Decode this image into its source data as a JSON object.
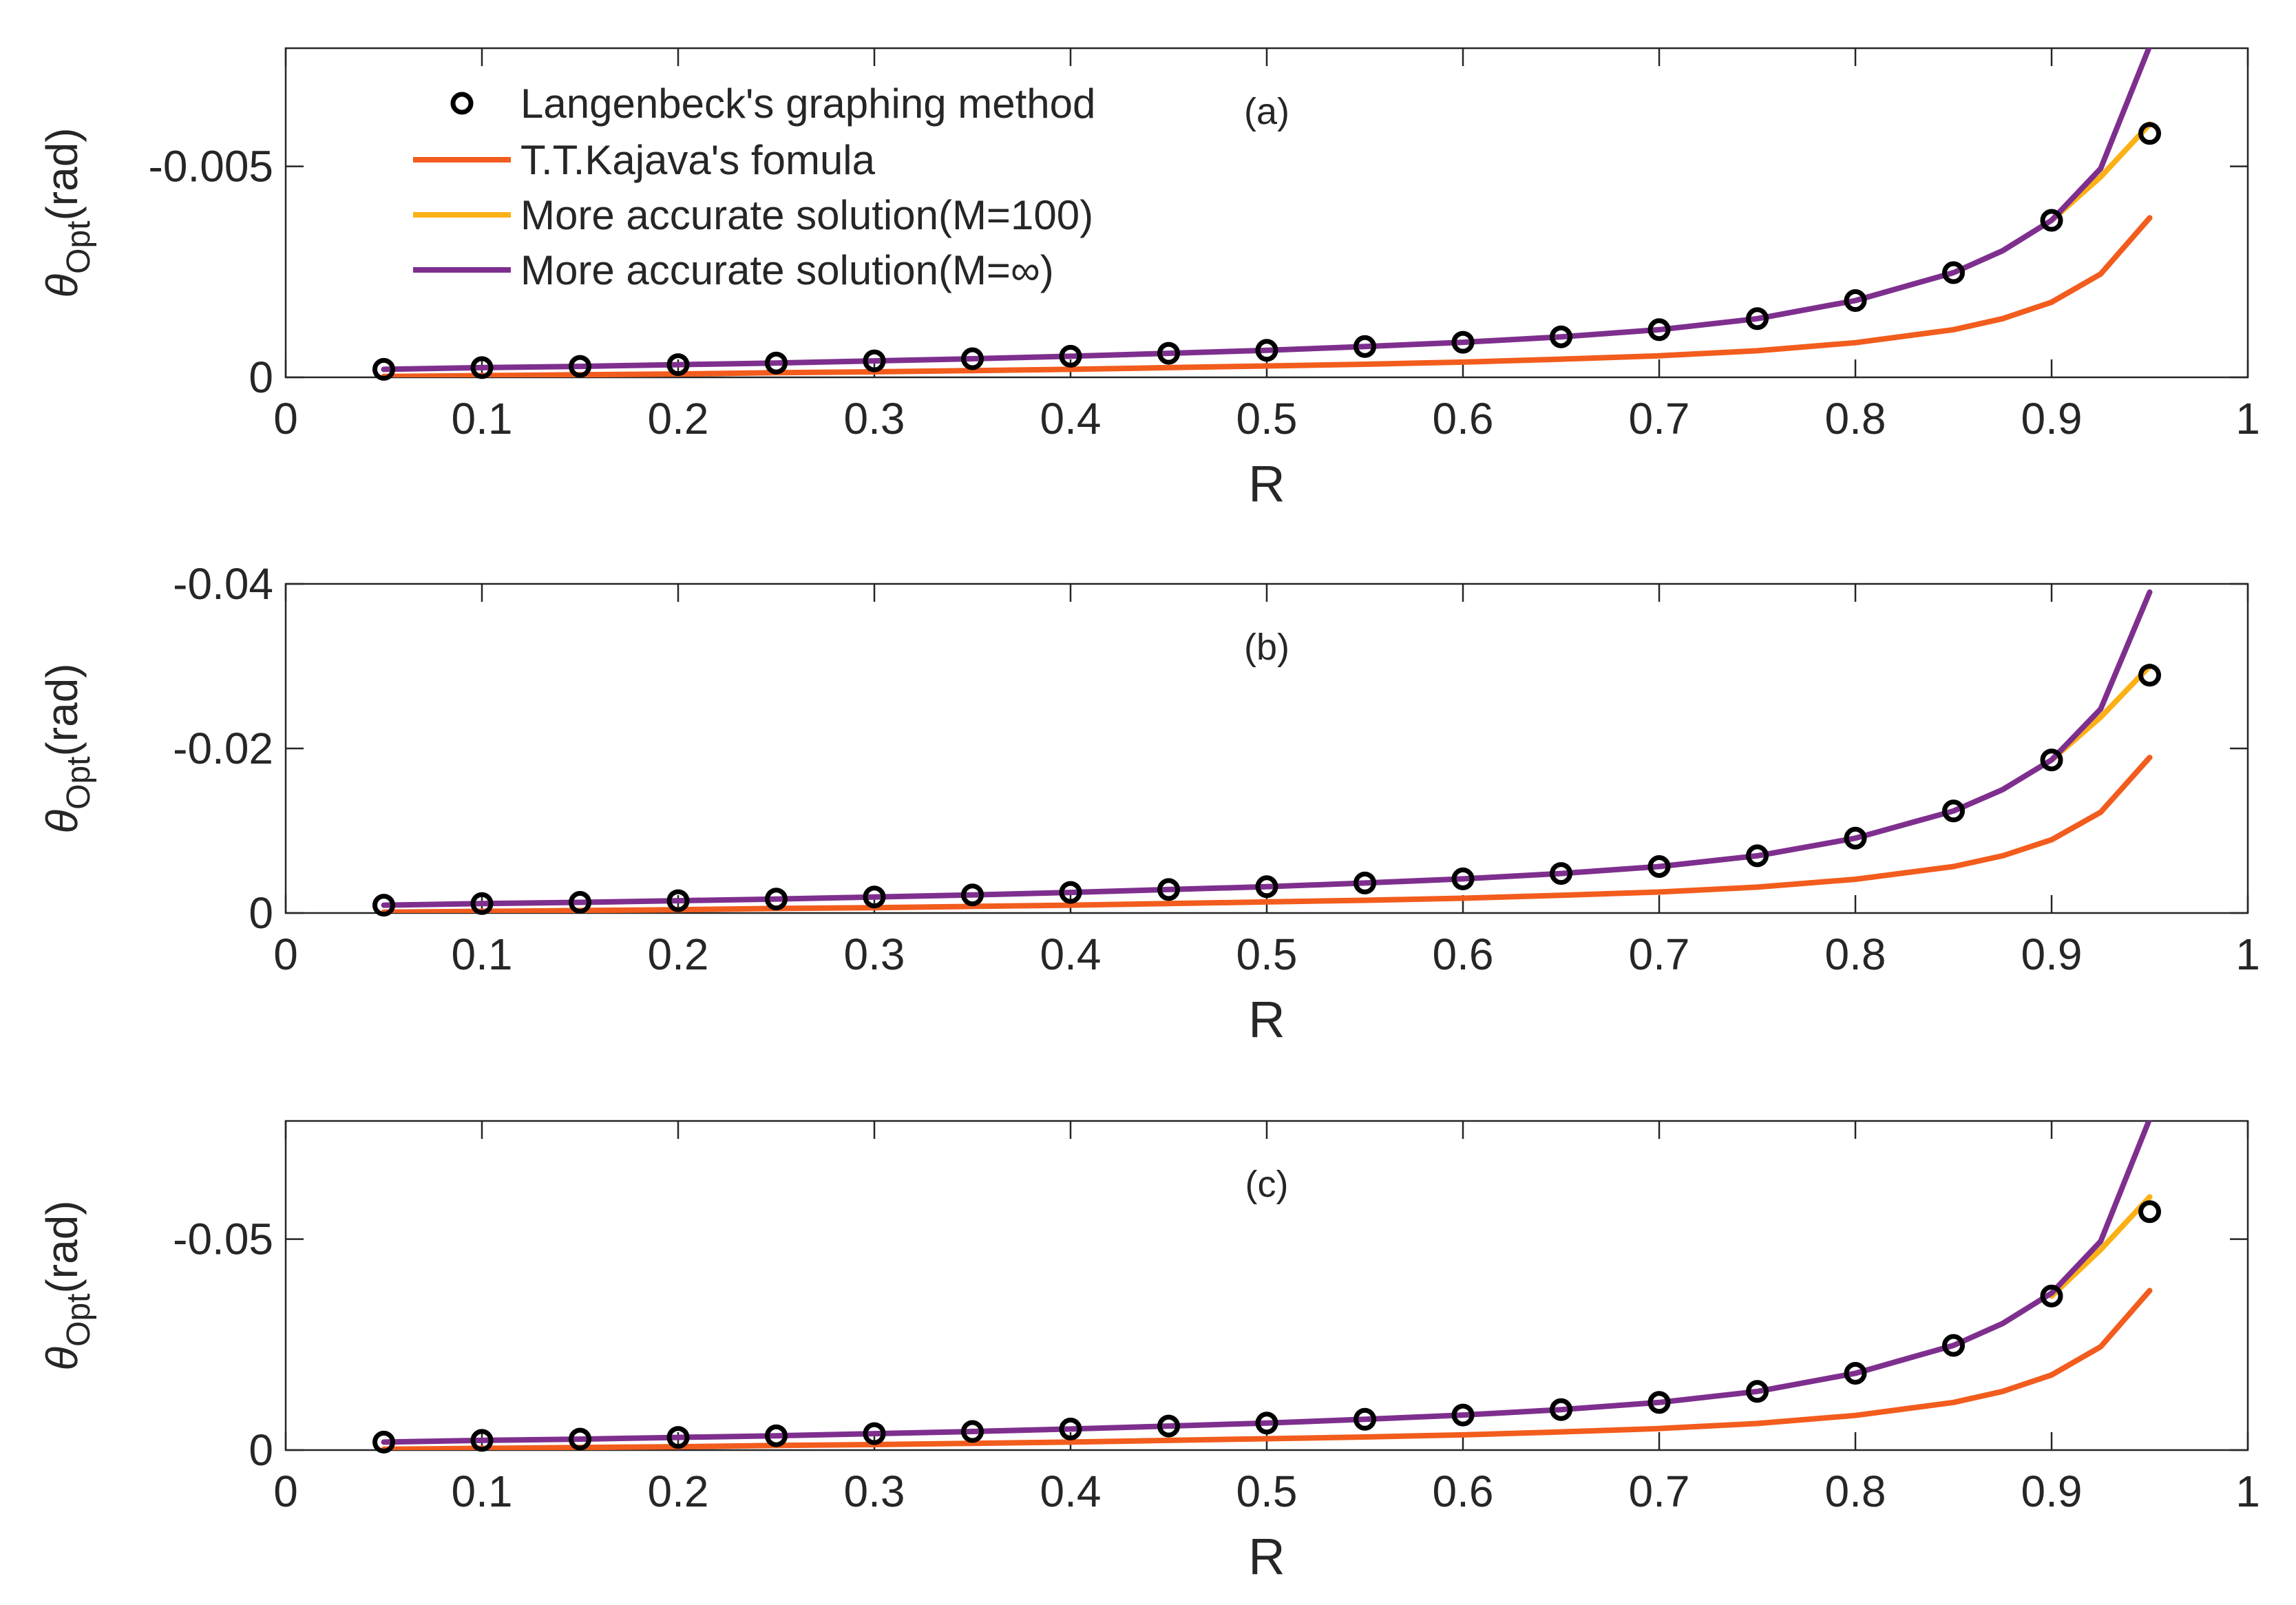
{
  "colors": {
    "langenbeck": "#000000",
    "kajava": "#F25C1D",
    "m100": "#FBB116",
    "minf": "#7E2F8E",
    "axes": "#262626"
  },
  "legend": {
    "placement": "top-left",
    "items": [
      "Langenbeck's graphing method",
      "T.T.Kajava's fomula",
      "More accurate solution(M=100)",
      "More accurate solution(M=∞)"
    ]
  },
  "chart_data": [
    {
      "type": "line",
      "annotation": "(a)",
      "xlabel": "R",
      "ylabel_main": "θ",
      "ylabel_sub": "Opt",
      "ylabel_unit": "(rad)",
      "xlim": [
        0,
        1
      ],
      "ylim": [
        0,
        -0.0078
      ],
      "xticks": [
        0,
        0.1,
        0.2,
        0.3,
        0.4,
        0.5,
        0.6,
        0.7,
        0.8,
        0.9,
        1
      ],
      "xtick_labels": [
        "0",
        "0.1",
        "0.2",
        "0.3",
        "0.4",
        "0.5",
        "0.6",
        "0.7",
        "0.8",
        "0.9",
        "1"
      ],
      "yticks": [
        0,
        -0.005
      ],
      "ytick_labels": [
        "0",
        "-0.005"
      ],
      "series": [
        {
          "name": "Langenbeck's graphing method",
          "style": "markers",
          "x": [
            0.05,
            0.1,
            0.15,
            0.2,
            0.25,
            0.3,
            0.35,
            0.4,
            0.45,
            0.5,
            0.55,
            0.6,
            0.65,
            0.7,
            0.75,
            0.8,
            0.85,
            0.9,
            0.95
          ],
          "y": [
            -0.00019,
            -0.00023,
            -0.00026,
            -0.0003,
            -0.00034,
            -0.00039,
            -0.00044,
            -0.0005,
            -0.00057,
            -0.00064,
            -0.00073,
            -0.00083,
            -0.00096,
            -0.00113,
            -0.00139,
            -0.00182,
            -0.00248,
            -0.00372,
            -0.00578
          ]
        },
        {
          "name": "T.T.Kajava's fomula",
          "style": "line",
          "x": [
            0.05,
            0.1,
            0.15,
            0.2,
            0.25,
            0.3,
            0.35,
            0.4,
            0.45,
            0.5,
            0.55,
            0.6,
            0.65,
            0.7,
            0.75,
            0.8,
            0.85,
            0.875,
            0.9,
            0.925,
            0.95
          ],
          "y": [
            -2e-05,
            -4e-05,
            -6e-05,
            -8e-05,
            -0.00011,
            -0.00013,
            -0.00016,
            -0.00019,
            -0.00023,
            -0.00027,
            -0.00031,
            -0.00036,
            -0.00043,
            -0.00051,
            -0.00063,
            -0.00082,
            -0.00113,
            -0.00139,
            -0.00178,
            -0.00245,
            -0.00378
          ]
        },
        {
          "name": "More accurate solution(M=100)",
          "style": "line",
          "x": [
            0.9,
            0.925,
            0.95
          ],
          "y": [
            -0.00372,
            -0.00475,
            -0.006
          ]
        },
        {
          "name": "More accurate solution(M=∞)",
          "style": "line",
          "x": [
            0.05,
            0.1,
            0.15,
            0.2,
            0.25,
            0.3,
            0.35,
            0.4,
            0.45,
            0.5,
            0.55,
            0.6,
            0.65,
            0.7,
            0.75,
            0.8,
            0.85,
            0.875,
            0.9,
            0.925,
            0.95
          ],
          "y": [
            -0.00019,
            -0.00023,
            -0.00026,
            -0.0003,
            -0.00034,
            -0.00039,
            -0.00044,
            -0.0005,
            -0.00057,
            -0.00064,
            -0.00073,
            -0.00083,
            -0.00096,
            -0.00113,
            -0.00139,
            -0.00182,
            -0.00248,
            -0.003,
            -0.00372,
            -0.00495,
            -0.00785
          ]
        }
      ]
    },
    {
      "type": "line",
      "annotation": "(b)",
      "xlabel": "R",
      "ylabel_main": "θ",
      "ylabel_sub": "Opt",
      "ylabel_unit": "(rad)",
      "xlim": [
        0,
        1
      ],
      "ylim": [
        0,
        -0.04
      ],
      "xticks": [
        0,
        0.1,
        0.2,
        0.3,
        0.4,
        0.5,
        0.6,
        0.7,
        0.8,
        0.9,
        1
      ],
      "xtick_labels": [
        "0",
        "0.1",
        "0.2",
        "0.3",
        "0.4",
        "0.5",
        "0.6",
        "0.7",
        "0.8",
        "0.9",
        "1"
      ],
      "yticks": [
        0,
        -0.02,
        -0.04
      ],
      "ytick_labels": [
        "0",
        "-0.02",
        "-0.04"
      ],
      "series": [
        {
          "name": "Langenbeck's graphing method",
          "style": "markers",
          "x": [
            0.05,
            0.1,
            0.15,
            0.2,
            0.25,
            0.3,
            0.35,
            0.4,
            0.45,
            0.5,
            0.55,
            0.6,
            0.65,
            0.7,
            0.75,
            0.8,
            0.85,
            0.9,
            0.95
          ],
          "y": [
            -0.00095,
            -0.00115,
            -0.0013,
            -0.0015,
            -0.0017,
            -0.00195,
            -0.0022,
            -0.0025,
            -0.00285,
            -0.0032,
            -0.00365,
            -0.00415,
            -0.0048,
            -0.00565,
            -0.00695,
            -0.0091,
            -0.0124,
            -0.0186,
            -0.0289
          ]
        },
        {
          "name": "T.T.Kajava's fomula",
          "style": "line",
          "x": [
            0.05,
            0.1,
            0.15,
            0.2,
            0.25,
            0.3,
            0.35,
            0.4,
            0.45,
            0.5,
            0.55,
            0.6,
            0.65,
            0.7,
            0.75,
            0.8,
            0.85,
            0.875,
            0.9,
            0.925,
            0.95
          ],
          "y": [
            -0.0001,
            -0.0002,
            -0.0003,
            -0.0004,
            -0.00055,
            -0.00065,
            -0.0008,
            -0.00095,
            -0.00115,
            -0.00135,
            -0.00155,
            -0.0018,
            -0.00215,
            -0.00255,
            -0.00315,
            -0.0041,
            -0.00565,
            -0.00695,
            -0.0089,
            -0.01225,
            -0.0189
          ]
        },
        {
          "name": "More accurate solution(M=100)",
          "style": "line",
          "x": [
            0.9,
            0.925,
            0.95
          ],
          "y": [
            -0.0186,
            -0.0238,
            -0.03
          ]
        },
        {
          "name": "More accurate solution(M=∞)",
          "style": "line",
          "x": [
            0.05,
            0.1,
            0.15,
            0.2,
            0.25,
            0.3,
            0.35,
            0.4,
            0.45,
            0.5,
            0.55,
            0.6,
            0.65,
            0.7,
            0.75,
            0.8,
            0.85,
            0.875,
            0.9,
            0.925,
            0.95
          ],
          "y": [
            -0.00095,
            -0.00115,
            -0.0013,
            -0.0015,
            -0.0017,
            -0.00195,
            -0.0022,
            -0.0025,
            -0.00285,
            -0.0032,
            -0.00365,
            -0.00415,
            -0.0048,
            -0.00565,
            -0.00695,
            -0.0091,
            -0.0124,
            -0.015,
            -0.0186,
            -0.0248,
            -0.039
          ]
        }
      ]
    },
    {
      "type": "line",
      "annotation": "(c)",
      "xlabel": "R",
      "ylabel_main": "θ",
      "ylabel_sub": "Opt",
      "ylabel_unit": "(rad)",
      "xlim": [
        0,
        1
      ],
      "ylim": [
        0,
        -0.078
      ],
      "xticks": [
        0,
        0.1,
        0.2,
        0.3,
        0.4,
        0.5,
        0.6,
        0.7,
        0.8,
        0.9,
        1
      ],
      "xtick_labels": [
        "0",
        "0.1",
        "0.2",
        "0.3",
        "0.4",
        "0.5",
        "0.6",
        "0.7",
        "0.8",
        "0.9",
        "1"
      ],
      "yticks": [
        0,
        -0.05
      ],
      "ytick_labels": [
        "0",
        "-0.05"
      ],
      "series": [
        {
          "name": "Langenbeck's graphing method",
          "style": "markers",
          "x": [
            0.05,
            0.1,
            0.15,
            0.2,
            0.25,
            0.3,
            0.35,
            0.4,
            0.45,
            0.5,
            0.55,
            0.6,
            0.65,
            0.7,
            0.75,
            0.8,
            0.85,
            0.9,
            0.95
          ],
          "y": [
            -0.0019,
            -0.0023,
            -0.0026,
            -0.003,
            -0.0034,
            -0.0039,
            -0.0044,
            -0.005,
            -0.0057,
            -0.0064,
            -0.0073,
            -0.0083,
            -0.0096,
            -0.0113,
            -0.0139,
            -0.0182,
            -0.0248,
            -0.0365,
            -0.0565
          ]
        },
        {
          "name": "T.T.Kajava's fomula",
          "style": "line",
          "x": [
            0.05,
            0.1,
            0.15,
            0.2,
            0.25,
            0.3,
            0.35,
            0.4,
            0.45,
            0.5,
            0.55,
            0.6,
            0.65,
            0.7,
            0.75,
            0.8,
            0.85,
            0.875,
            0.9,
            0.925,
            0.95
          ],
          "y": [
            -0.0002,
            -0.0004,
            -0.0006,
            -0.0008,
            -0.0011,
            -0.0013,
            -0.0016,
            -0.0019,
            -0.0023,
            -0.0027,
            -0.0031,
            -0.0036,
            -0.0043,
            -0.0051,
            -0.0063,
            -0.0082,
            -0.0113,
            -0.0139,
            -0.0178,
            -0.0245,
            -0.0378
          ]
        },
        {
          "name": "More accurate solution(M=100)",
          "style": "line",
          "x": [
            0.9,
            0.925,
            0.95
          ],
          "y": [
            -0.0365,
            -0.0475,
            -0.06
          ]
        },
        {
          "name": "More accurate solution(M=∞)",
          "style": "line",
          "x": [
            0.05,
            0.1,
            0.15,
            0.2,
            0.25,
            0.3,
            0.35,
            0.4,
            0.45,
            0.5,
            0.55,
            0.6,
            0.65,
            0.7,
            0.75,
            0.8,
            0.85,
            0.875,
            0.9,
            0.925,
            0.95
          ],
          "y": [
            -0.0019,
            -0.0023,
            -0.0026,
            -0.003,
            -0.0034,
            -0.0039,
            -0.0044,
            -0.005,
            -0.0057,
            -0.0064,
            -0.0073,
            -0.0083,
            -0.0096,
            -0.0113,
            -0.0139,
            -0.0182,
            -0.0248,
            -0.03,
            -0.0372,
            -0.0495,
            -0.0785
          ]
        }
      ]
    }
  ]
}
